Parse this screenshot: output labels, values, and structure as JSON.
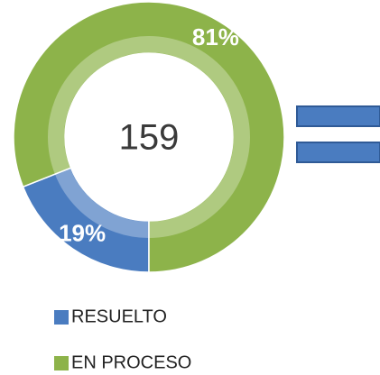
{
  "chart_data": {
    "type": "donut",
    "total": 159,
    "categories": [
      "RESUELTO",
      "EN PROCESO"
    ],
    "values": [
      19,
      81
    ],
    "value_labels": [
      "19%",
      "81%"
    ],
    "colors": [
      "#4a7cc0",
      "#8db34a"
    ],
    "legend": "bottom"
  }
}
